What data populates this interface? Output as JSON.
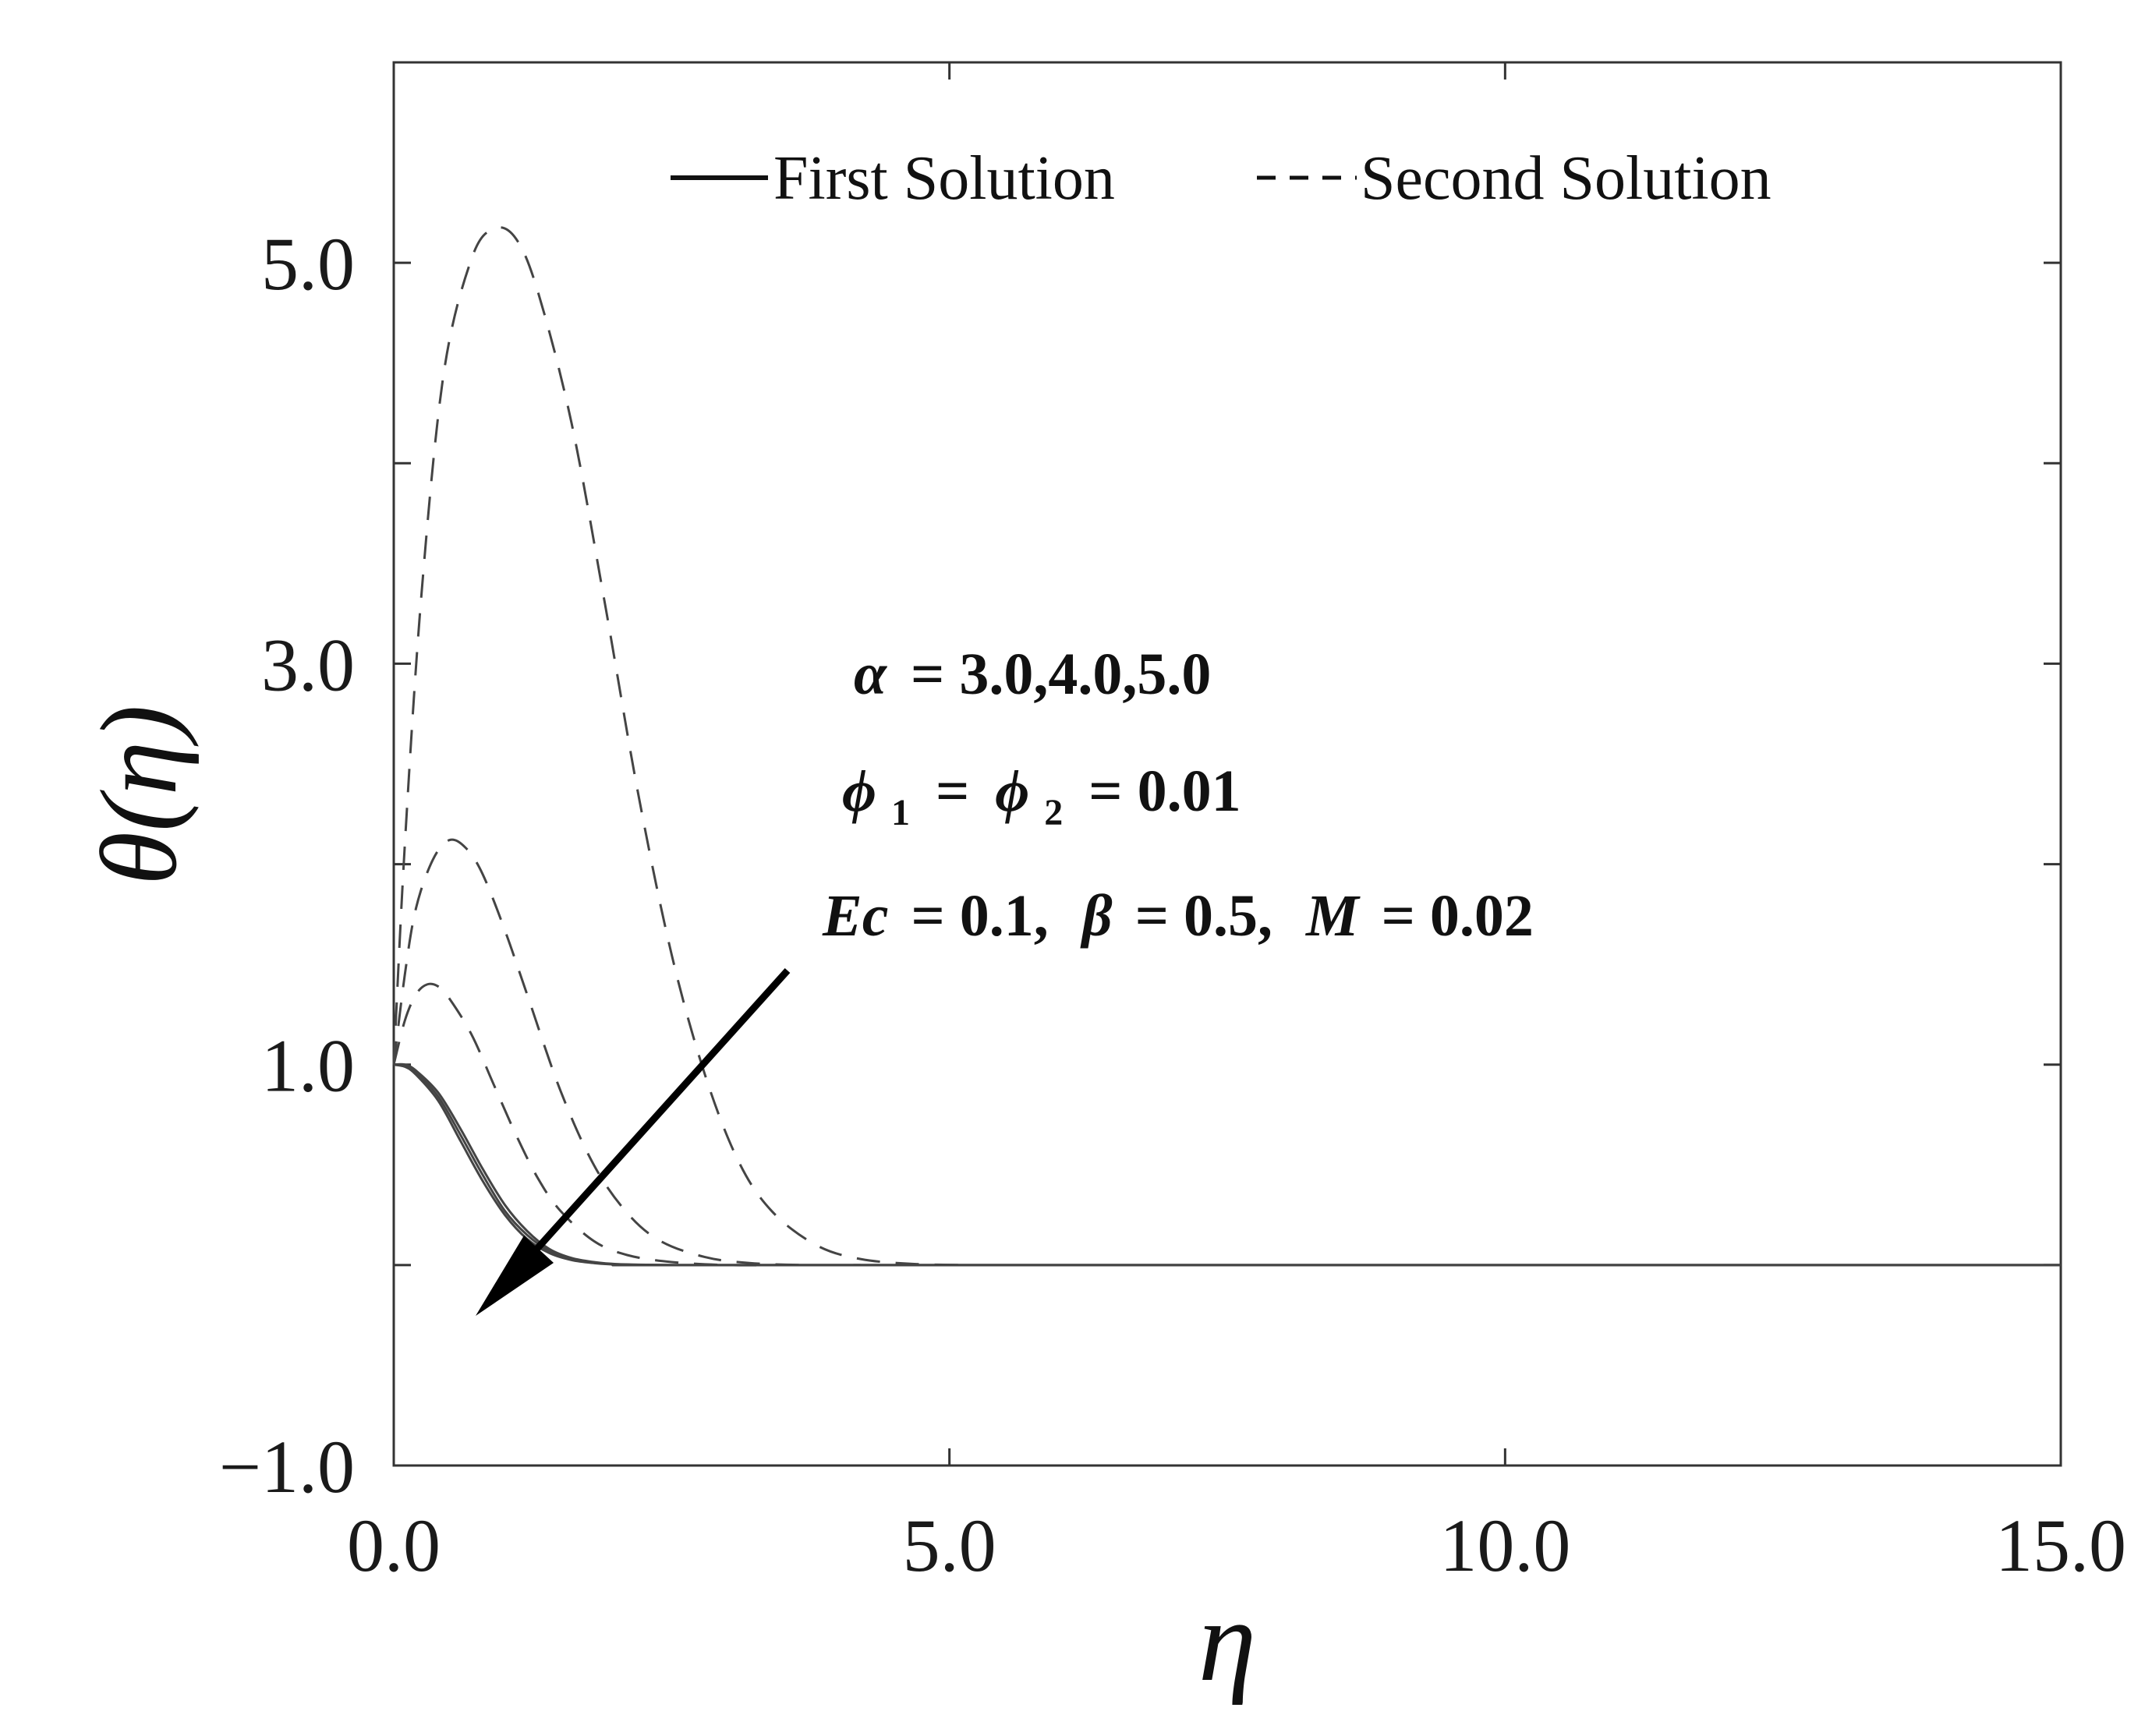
{
  "chart_data": {
    "type": "line",
    "title": "",
    "xlabel": "η",
    "ylabel": "θ(η)",
    "xlim": [
      0,
      15
    ],
    "ylim": [
      -1,
      6
    ],
    "x_ticks": [
      0,
      5,
      10,
      15
    ],
    "x_tick_labels": [
      "0.0",
      "5.0",
      "10.0",
      "15.0"
    ],
    "y_ticks": [
      -1,
      1,
      3,
      5
    ],
    "y_tick_labels": [
      "−1.0",
      "1.0",
      "3.0",
      "5.0"
    ],
    "grid": false,
    "legend": {
      "placement": "top",
      "entries": [
        {
          "label": "First Solution",
          "style": "solid"
        },
        {
          "label": "Second Solution",
          "style": "dashed"
        }
      ]
    },
    "annotations": {
      "line1": {
        "sym": "α",
        "eq": "= 3.0,4.0,5.0"
      },
      "line2": {
        "sym1": "ϕ",
        "sub1": "1",
        "eq1": "=",
        "sym2": "ϕ",
        "sub2": "2",
        "eq2": "= 0.01"
      },
      "line3": {
        "s1": "Ec",
        "v1": "= 0.1,",
        "s2": "β",
        "v2": "= 0.5,",
        "s3": "M",
        "v3": "= 0.02"
      },
      "arrow_direction": "decreasing α"
    },
    "series": [
      {
        "style": "solid",
        "x": [
          0,
          0.1,
          0.2,
          0.4,
          0.6,
          0.8,
          1.0,
          1.2,
          1.4,
          1.6,
          1.8,
          2.0,
          2.5,
          3.0,
          15.0
        ],
        "y": [
          1.0,
          1.0,
          0.97,
          0.86,
          0.68,
          0.48,
          0.3,
          0.17,
          0.08,
          0.035,
          0.015,
          0.005,
          0.0,
          0.0,
          0.0
        ]
      },
      {
        "style": "solid",
        "x": [
          0,
          0.1,
          0.2,
          0.4,
          0.6,
          0.8,
          1.0,
          1.2,
          1.4,
          1.6,
          1.8,
          2.0,
          2.5,
          3.0,
          15.0
        ],
        "y": [
          1.0,
          0.99,
          0.96,
          0.84,
          0.65,
          0.45,
          0.27,
          0.15,
          0.07,
          0.03,
          0.012,
          0.004,
          0.0,
          0.0,
          0.0
        ]
      },
      {
        "style": "solid",
        "x": [
          0,
          0.1,
          0.2,
          0.4,
          0.6,
          0.8,
          1.0,
          1.2,
          1.4,
          1.6,
          1.8,
          2.0,
          2.5,
          3.0,
          15.0
        ],
        "y": [
          1.0,
          0.99,
          0.95,
          0.82,
          0.62,
          0.42,
          0.25,
          0.13,
          0.06,
          0.025,
          0.01,
          0.003,
          0.0,
          0.0,
          0.0
        ]
      },
      {
        "style": "dashed",
        "x": [
          0,
          0.1,
          0.2,
          0.3,
          0.4,
          0.5,
          0.7,
          0.9,
          1.1,
          1.3,
          1.5,
          1.8,
          2.1,
          2.5,
          3.0,
          3.5
        ],
        "y": [
          1.0,
          1.22,
          1.35,
          1.4,
          1.39,
          1.33,
          1.15,
          0.9,
          0.65,
          0.43,
          0.27,
          0.12,
          0.05,
          0.015,
          0.0,
          0.0
        ]
      },
      {
        "style": "dashed",
        "x": [
          0,
          0.1,
          0.2,
          0.35,
          0.5,
          0.65,
          0.8,
          1.0,
          1.2,
          1.5,
          1.8,
          2.1,
          2.4,
          2.8,
          3.2,
          3.7,
          4.2
        ],
        "y": [
          1.0,
          1.45,
          1.78,
          2.02,
          2.12,
          2.08,
          1.95,
          1.67,
          1.35,
          0.87,
          0.5,
          0.26,
          0.12,
          0.04,
          0.01,
          0.0,
          0.0
        ]
      },
      {
        "style": "dashed",
        "x": [
          0,
          0.1,
          0.25,
          0.45,
          0.7,
          0.9,
          1.1,
          1.3,
          1.6,
          1.9,
          2.2,
          2.5,
          2.8,
          3.1,
          3.4,
          3.8,
          4.2,
          4.7,
          5.2
        ],
        "y": [
          1.0,
          2.1,
          3.35,
          4.45,
          5.02,
          5.17,
          5.12,
          4.85,
          4.2,
          3.3,
          2.35,
          1.55,
          0.95,
          0.52,
          0.27,
          0.1,
          0.03,
          0.005,
          0.0
        ]
      }
    ]
  }
}
